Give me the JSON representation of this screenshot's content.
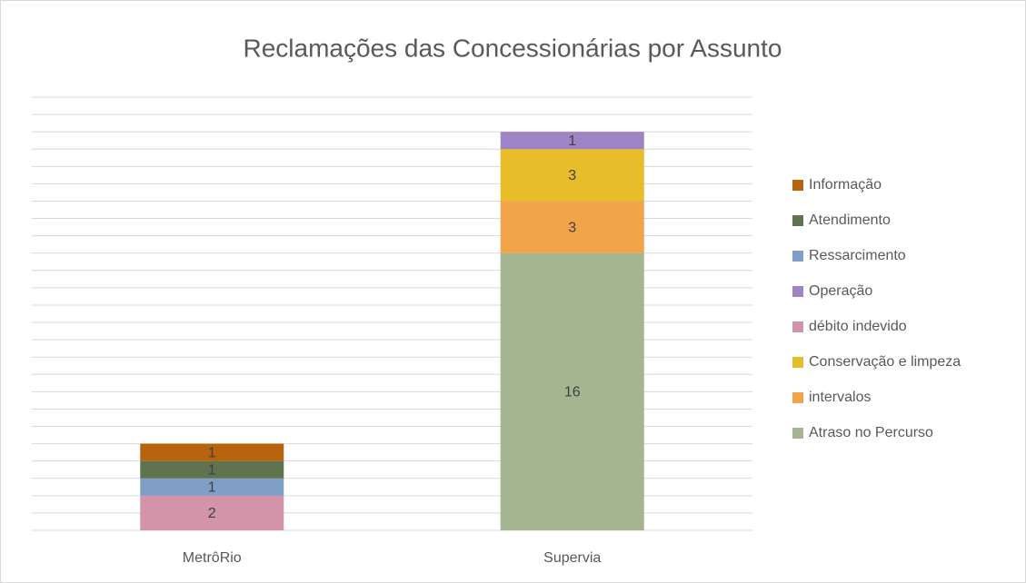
{
  "chart_data": {
    "type": "stacked_bar",
    "title": "Reclamações das Concessionárias por Assunto",
    "categories": [
      "MetrôRio",
      "Supervia"
    ],
    "series": [
      {
        "name": "Atraso no Percurso",
        "color": "#a5b592",
        "values": [
          null,
          16
        ]
      },
      {
        "name": "intervalos",
        "color": "#f2a44b",
        "values": [
          null,
          3
        ]
      },
      {
        "name": "Conservação e limpeza",
        "color": "#e7bd2a",
        "values": [
          null,
          3
        ]
      },
      {
        "name": "débito indevido",
        "color": "#d393a8",
        "values": [
          2,
          null
        ]
      },
      {
        "name": "Operação",
        "color": "#9e84c5",
        "values": [
          null,
          1
        ]
      },
      {
        "name": "Ressarcimento",
        "color": "#7f9fc7",
        "values": [
          1,
          null
        ]
      },
      {
        "name": "Atendimento",
        "color": "#60734f",
        "values": [
          1,
          null
        ]
      },
      {
        "name": "Informação",
        "color": "#b8640f",
        "values": [
          1,
          null
        ]
      }
    ],
    "ylim": [
      0,
      25
    ],
    "yticks": [
      0,
      1,
      2,
      3,
      4,
      5,
      6,
      7,
      8,
      9,
      10,
      11,
      12,
      13,
      14,
      15,
      16,
      17,
      18,
      19,
      20,
      21,
      22,
      23,
      24,
      25
    ],
    "grid": true,
    "legend": "right"
  }
}
